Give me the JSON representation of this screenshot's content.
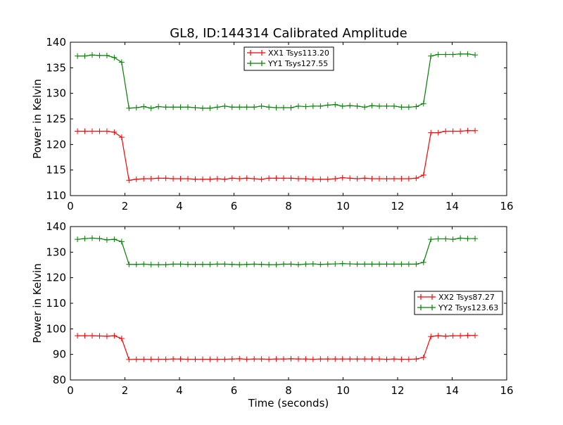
{
  "chart_data": [
    {
      "type": "line",
      "title": "GL8, ID:144314 Calibrated Amplitude",
      "xlabel": "",
      "ylabel": "Power in Kelvin",
      "xlim": [
        0,
        16
      ],
      "ylim": [
        110,
        140
      ],
      "xticks": [
        "0",
        "2",
        "4",
        "6",
        "8",
        "10",
        "12",
        "14",
        "16"
      ],
      "yticks": [
        "110",
        "115",
        "120",
        "125",
        "130",
        "135",
        "140"
      ],
      "legend_placement": "top-center",
      "x_start": 0.26,
      "x_step": 0.27,
      "series": [
        {
          "name": "XX1 Tsys113.20",
          "color": "#ff0000",
          "values": [
            122.6,
            122.6,
            122.6,
            122.6,
            122.6,
            122.4,
            121.4,
            113.0,
            113.2,
            113.3,
            113.3,
            113.4,
            113.4,
            113.3,
            113.3,
            113.3,
            113.2,
            113.2,
            113.2,
            113.3,
            113.2,
            113.4,
            113.3,
            113.4,
            113.3,
            113.2,
            113.4,
            113.4,
            113.4,
            113.4,
            113.3,
            113.3,
            113.2,
            113.2,
            113.2,
            113.3,
            113.5,
            113.4,
            113.3,
            113.4,
            113.3,
            113.3,
            113.3,
            113.3,
            113.3,
            113.3,
            113.4,
            114.0,
            122.3,
            122.3,
            122.6,
            122.6,
            122.6,
            122.7,
            122.7
          ]
        },
        {
          "name": "YY1 Tsys127.55",
          "color": "#008000",
          "values": [
            137.3,
            137.3,
            137.5,
            137.4,
            137.4,
            137.0,
            136.1,
            127.1,
            127.2,
            127.4,
            127.1,
            127.4,
            127.3,
            127.3,
            127.3,
            127.3,
            127.2,
            127.1,
            127.1,
            127.3,
            127.5,
            127.3,
            127.3,
            127.3,
            127.3,
            127.5,
            127.3,
            127.2,
            127.2,
            127.2,
            127.5,
            127.4,
            127.5,
            127.5,
            127.7,
            127.8,
            127.5,
            127.6,
            127.5,
            127.3,
            127.6,
            127.5,
            127.5,
            127.5,
            127.3,
            127.3,
            127.4,
            128.0,
            137.3,
            137.6,
            137.6,
            137.6,
            137.7,
            137.7,
            137.5
          ]
        }
      ]
    },
    {
      "type": "line",
      "title": "",
      "xlabel": "Time (seconds)",
      "ylabel": "Power in Kelvin",
      "xlim": [
        0,
        16
      ],
      "ylim": [
        80,
        140
      ],
      "xticks": [
        "0",
        "2",
        "4",
        "6",
        "8",
        "10",
        "12",
        "14",
        "16"
      ],
      "yticks": [
        "80",
        "90",
        "100",
        "110",
        "120",
        "130",
        "140"
      ],
      "legend_placement": "center-right",
      "x_start": 0.26,
      "x_step": 0.27,
      "series": [
        {
          "name": "XX2 Tsys87.27",
          "color": "#ff0000",
          "values": [
            97.3,
            97.3,
            97.3,
            97.2,
            97.1,
            97.3,
            96.2,
            88.0,
            88.1,
            88.1,
            88.1,
            88.1,
            88.1,
            88.2,
            88.2,
            88.1,
            88.1,
            88.1,
            88.1,
            88.1,
            88.1,
            88.2,
            88.3,
            88.1,
            88.2,
            88.2,
            88.1,
            88.2,
            88.2,
            88.3,
            88.2,
            88.2,
            88.1,
            88.2,
            88.2,
            88.2,
            88.2,
            88.2,
            88.2,
            88.2,
            88.2,
            88.2,
            88.1,
            88.2,
            88.1,
            88.1,
            88.2,
            88.8,
            97.0,
            97.3,
            97.1,
            97.3,
            97.3,
            97.4,
            97.4
          ]
        },
        {
          "name": "YY2 Tsys123.63",
          "color": "#008000",
          "values": [
            135.0,
            135.3,
            135.5,
            135.3,
            134.8,
            135.0,
            134.1,
            125.2,
            125.2,
            125.3,
            125.1,
            125.1,
            125.1,
            125.3,
            125.3,
            125.2,
            125.2,
            125.2,
            125.2,
            125.3,
            125.3,
            125.2,
            125.1,
            125.2,
            125.3,
            125.2,
            125.1,
            125.1,
            125.3,
            125.3,
            125.1,
            125.3,
            125.4,
            125.2,
            125.3,
            125.4,
            125.5,
            125.4,
            125.3,
            125.3,
            125.3,
            125.3,
            125.3,
            125.3,
            125.3,
            125.3,
            125.3,
            126.0,
            135.0,
            135.2,
            135.2,
            135.0,
            135.5,
            135.3,
            135.3
          ]
        }
      ]
    }
  ]
}
